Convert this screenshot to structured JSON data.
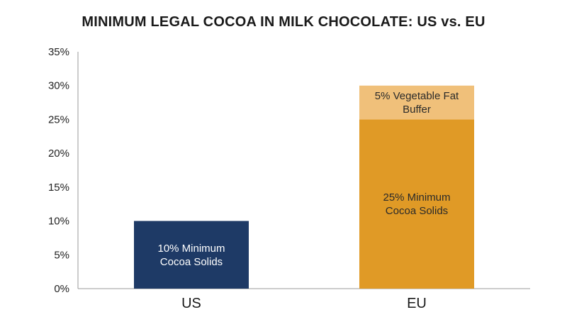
{
  "chart_data": {
    "type": "bar",
    "stacked": true,
    "title": "MINIMUM LEGAL COCOA IN MILK CHOCOLATE: US vs. EU",
    "xlabel": "",
    "ylabel": "",
    "categories": [
      "US",
      "EU"
    ],
    "ylim": [
      0,
      35
    ],
    "yticks": [
      0,
      5,
      10,
      15,
      20,
      25,
      30,
      35
    ],
    "ytick_format": "percent",
    "grid": false,
    "legend": "none",
    "segments": [
      {
        "category": "US",
        "value": 10,
        "label_lines": [
          "10% Minimum",
          "Cocoa Solids"
        ],
        "color": "#1e3a66",
        "text_color": "#ffffff"
      },
      {
        "category": "EU",
        "value": 25,
        "label_lines": [
          "25% Minimum",
          "Cocoa Solids"
        ],
        "color": "#e09a26",
        "text_color": "#2a2a2a"
      },
      {
        "category": "EU",
        "value": 5,
        "label_lines": [
          "5% Vegetable Fat",
          "Buffer"
        ],
        "color": "#f0c07a",
        "text_color": "#2a2a2a"
      }
    ]
  }
}
